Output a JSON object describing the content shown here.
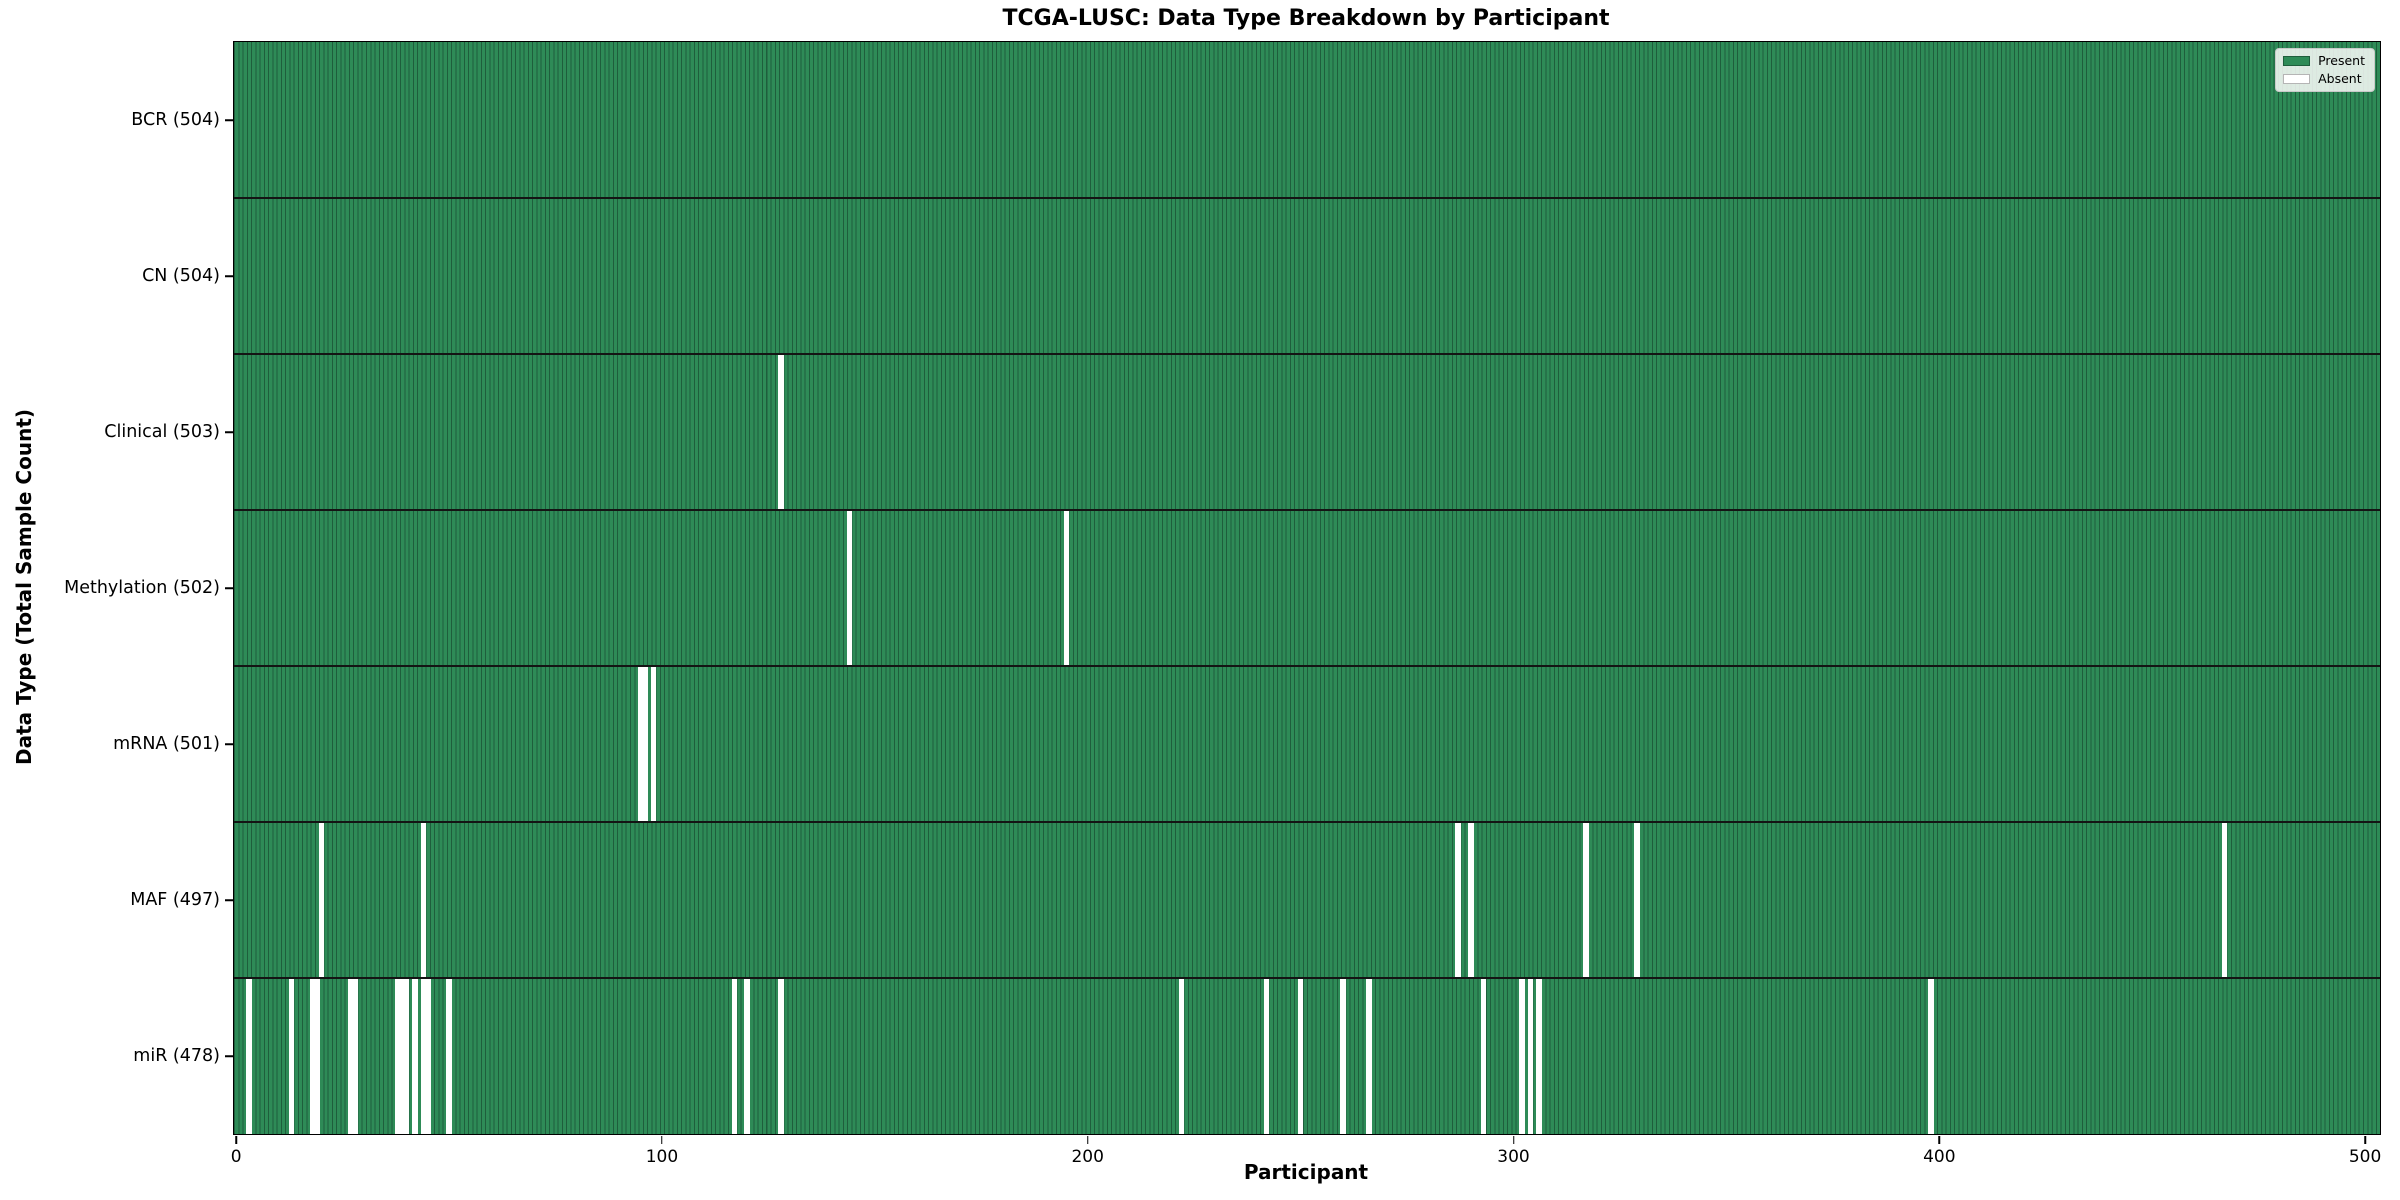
{
  "title": "TCGA-LUSC: Data Type Breakdown by Participant",
  "colors": {
    "present": "#2e8b57",
    "present_edge": "#1e5e3c",
    "absent": "#ffffff",
    "absent_edge": "#b5b5b5",
    "separator": "#141414"
  },
  "chart_data": {
    "type": "heatmap",
    "title": "TCGA-LUSC: Data Type Breakdown by Participant",
    "xlabel": "Participant",
    "ylabel": "Data Type (Total Sample Count)",
    "n_participants": 504,
    "xlim": [
      -0.5,
      503.5
    ],
    "x_ticks": [
      0,
      100,
      200,
      300,
      400,
      500
    ],
    "grid": false,
    "legend_position": "upper right",
    "legend": [
      {
        "label": "Present",
        "color": "#2e8b57"
      },
      {
        "label": "Absent",
        "color": "#ffffff"
      }
    ],
    "rows": [
      {
        "label": "BCR (504)",
        "data_type": "BCR",
        "total": 504,
        "absent_participants": []
      },
      {
        "label": "CN (504)",
        "data_type": "CN",
        "total": 504,
        "absent_participants": []
      },
      {
        "label": "Clinical (503)",
        "data_type": "Clinical",
        "total": 503,
        "absent_participants": [
          128
        ]
      },
      {
        "label": "Methylation (502)",
        "data_type": "Methylation",
        "total": 502,
        "absent_participants": [
          144,
          195
        ]
      },
      {
        "label": "mRNA (501)",
        "data_type": "mRNA",
        "total": 501,
        "absent_participants": [
          95,
          96,
          98
        ]
      },
      {
        "label": "MAF (497)",
        "data_type": "MAF",
        "total": 497,
        "absent_participants": [
          20,
          44,
          287,
          290,
          317,
          329,
          467
        ]
      },
      {
        "label": "miR (478)",
        "data_type": "miR",
        "total": 478,
        "absent_participants": [
          3,
          13,
          18,
          19,
          27,
          28,
          38,
          39,
          40,
          42,
          44,
          45,
          50,
          117,
          120,
          128,
          222,
          242,
          250,
          260,
          266,
          293,
          302,
          304,
          306,
          398
        ]
      }
    ]
  }
}
